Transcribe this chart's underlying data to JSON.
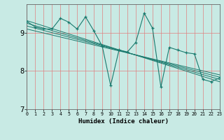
{
  "title": "",
  "xlabel": "Humidex (Indice chaleur)",
  "xlim": [
    0,
    23
  ],
  "ylim": [
    7.0,
    9.75
  ],
  "yticks": [
    7,
    8,
    9
  ],
  "xticks": [
    0,
    1,
    2,
    3,
    4,
    5,
    6,
    7,
    8,
    9,
    10,
    11,
    12,
    13,
    14,
    15,
    16,
    17,
    18,
    19,
    20,
    21,
    22,
    23
  ],
  "bg_color": "#c8eae4",
  "line_color": "#1a7a6e",
  "grid_color": "#e08080",
  "series_jagged_x": [
    0,
    1,
    2,
    3,
    4,
    5,
    6,
    7,
    8,
    9,
    10,
    11,
    12,
    13,
    14,
    15,
    16,
    17,
    18,
    19,
    20,
    21,
    22,
    23
  ],
  "series_jagged_y": [
    9.3,
    9.15,
    9.1,
    9.1,
    9.38,
    9.28,
    9.1,
    9.42,
    9.05,
    8.65,
    7.62,
    8.55,
    8.5,
    8.75,
    9.52,
    9.12,
    7.58,
    8.62,
    8.55,
    8.48,
    8.45,
    7.78,
    7.72,
    7.82
  ],
  "trend_lines": [
    {
      "x": [
        0,
        23
      ],
      "y": [
        9.32,
        7.72
      ]
    },
    {
      "x": [
        0,
        23
      ],
      "y": [
        9.25,
        7.78
      ]
    },
    {
      "x": [
        0,
        23
      ],
      "y": [
        9.18,
        7.84
      ]
    },
    {
      "x": [
        0,
        23
      ],
      "y": [
        9.1,
        7.9
      ]
    }
  ]
}
